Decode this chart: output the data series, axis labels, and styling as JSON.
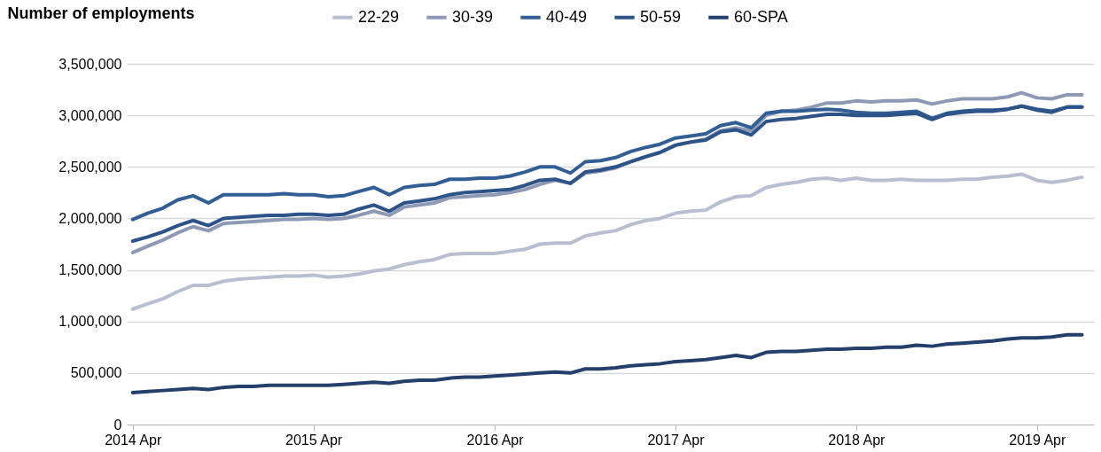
{
  "chart_data": {
    "type": "line",
    "ylabel": "Number of employments",
    "legend": "top",
    "grid": "y",
    "line_style": "solid",
    "marker": "none",
    "x": [
      "2014-04",
      "2014-05",
      "2014-06",
      "2014-07",
      "2014-08",
      "2014-09",
      "2014-10",
      "2014-11",
      "2014-12",
      "2015-01",
      "2015-02",
      "2015-03",
      "2015-04",
      "2015-05",
      "2015-06",
      "2015-07",
      "2015-08",
      "2015-09",
      "2015-10",
      "2015-11",
      "2015-12",
      "2016-01",
      "2016-02",
      "2016-03",
      "2016-04",
      "2016-05",
      "2016-06",
      "2016-07",
      "2016-08",
      "2016-09",
      "2016-10",
      "2016-11",
      "2016-12",
      "2017-01",
      "2017-02",
      "2017-03",
      "2017-04",
      "2017-05",
      "2017-06",
      "2017-07",
      "2017-08",
      "2017-09",
      "2017-10",
      "2017-11",
      "2017-12",
      "2018-01",
      "2018-02",
      "2018-03",
      "2018-04",
      "2018-05",
      "2018-06",
      "2018-07",
      "2018-08",
      "2018-09",
      "2018-10",
      "2018-11",
      "2018-12",
      "2019-01",
      "2019-02",
      "2019-03",
      "2019-04",
      "2019-05",
      "2019-06",
      "2019-07"
    ],
    "xlim": [
      "2014-03-20",
      "2019-07-25"
    ],
    "xticks": [
      {
        "value": "2014-04",
        "label": "2014 Apr"
      },
      {
        "value": "2015-04",
        "label": "2015 Apr"
      },
      {
        "value": "2016-04",
        "label": "2016 Apr"
      },
      {
        "value": "2017-04",
        "label": "2017 Apr"
      },
      {
        "value": "2018-04",
        "label": "2018 Apr"
      },
      {
        "value": "2019-04",
        "label": "2019 Apr"
      }
    ],
    "ylim": [
      0,
      3500000
    ],
    "yticks": [
      0,
      {
        "value": 500000,
        "label": "500,000"
      },
      {
        "value": 1000000,
        "label": "1,000,000"
      },
      {
        "value": 1500000,
        "label": "1,500,000"
      },
      {
        "value": 2000000,
        "label": "2,000,000"
      },
      {
        "value": 2500000,
        "label": "2,500,000"
      },
      {
        "value": 3000000,
        "label": "3,000,000"
      },
      {
        "value": 3500000,
        "label": "3,500,000"
      }
    ],
    "series": [
      {
        "name": "22-29",
        "color": "#b8bfd0",
        "values": [
          1120000,
          1170000,
          1220000,
          1290000,
          1350000,
          1350000,
          1390000,
          1410000,
          1420000,
          1430000,
          1440000,
          1440000,
          1450000,
          1430000,
          1440000,
          1460000,
          1490000,
          1510000,
          1550000,
          1580000,
          1600000,
          1650000,
          1660000,
          1660000,
          1660000,
          1680000,
          1700000,
          1750000,
          1760000,
          1760000,
          1830000,
          1860000,
          1880000,
          1940000,
          1980000,
          2000000,
          2050000,
          2070000,
          2080000,
          2160000,
          2210000,
          2220000,
          2300000,
          2330000,
          2350000,
          2380000,
          2390000,
          2370000,
          2390000,
          2370000,
          2370000,
          2380000,
          2370000,
          2370000,
          2370000,
          2380000,
          2380000,
          2400000,
          2410000,
          2430000,
          2370000,
          2350000,
          2370000,
          2400000
        ]
      },
      {
        "name": "30-39",
        "color": "#8e9ab5",
        "values": [
          1670000,
          1730000,
          1790000,
          1860000,
          1920000,
          1880000,
          1950000,
          1960000,
          1970000,
          1980000,
          1990000,
          1990000,
          2000000,
          1990000,
          2000000,
          2030000,
          2070000,
          2030000,
          2110000,
          2130000,
          2150000,
          2200000,
          2210000,
          2220000,
          2230000,
          2250000,
          2280000,
          2330000,
          2370000,
          2340000,
          2440000,
          2460000,
          2490000,
          2550000,
          2600000,
          2640000,
          2710000,
          2740000,
          2770000,
          2850000,
          2880000,
          2850000,
          3000000,
          3040000,
          3050000,
          3080000,
          3120000,
          3120000,
          3140000,
          3130000,
          3140000,
          3140000,
          3150000,
          3110000,
          3140000,
          3160000,
          3160000,
          3160000,
          3180000,
          3220000,
          3170000,
          3160000,
          3200000,
          3200000
        ]
      },
      {
        "name": "40-49",
        "color": "#335e95",
        "values": [
          1990000,
          2050000,
          2100000,
          2180000,
          2220000,
          2150000,
          2230000,
          2230000,
          2230000,
          2230000,
          2240000,
          2230000,
          2230000,
          2210000,
          2220000,
          2260000,
          2300000,
          2230000,
          2300000,
          2320000,
          2330000,
          2380000,
          2380000,
          2390000,
          2390000,
          2410000,
          2450000,
          2500000,
          2500000,
          2440000,
          2550000,
          2560000,
          2590000,
          2650000,
          2690000,
          2720000,
          2780000,
          2800000,
          2820000,
          2900000,
          2930000,
          2880000,
          3020000,
          3040000,
          3040000,
          3050000,
          3060000,
          3050000,
          3030000,
          3020000,
          3020000,
          3030000,
          3040000,
          2970000,
          3020000,
          3040000,
          3050000,
          3050000,
          3060000,
          3090000,
          3060000,
          3040000,
          3080000,
          3080000
        ]
      },
      {
        "name": "50-59",
        "color": "#2d5389",
        "values": [
          1780000,
          1820000,
          1870000,
          1930000,
          1980000,
          1930000,
          2000000,
          2010000,
          2020000,
          2030000,
          2030000,
          2040000,
          2040000,
          2030000,
          2040000,
          2090000,
          2130000,
          2070000,
          2150000,
          2170000,
          2190000,
          2230000,
          2250000,
          2260000,
          2270000,
          2280000,
          2320000,
          2370000,
          2380000,
          2340000,
          2450000,
          2470000,
          2500000,
          2550000,
          2600000,
          2640000,
          2710000,
          2740000,
          2760000,
          2840000,
          2860000,
          2810000,
          2940000,
          2960000,
          2970000,
          2990000,
          3010000,
          3010000,
          3000000,
          3000000,
          3000000,
          3010000,
          3020000,
          2960000,
          3010000,
          3030000,
          3040000,
          3040000,
          3060000,
          3090000,
          3050000,
          3030000,
          3080000,
          3080000
        ]
      },
      {
        "name": "60-SPA",
        "color": "#233f6a",
        "values": [
          310000,
          320000,
          330000,
          340000,
          350000,
          340000,
          360000,
          370000,
          370000,
          380000,
          380000,
          380000,
          380000,
          380000,
          390000,
          400000,
          410000,
          400000,
          420000,
          430000,
          430000,
          450000,
          460000,
          460000,
          470000,
          480000,
          490000,
          500000,
          510000,
          500000,
          540000,
          540000,
          550000,
          570000,
          580000,
          590000,
          610000,
          620000,
          630000,
          650000,
          670000,
          650000,
          700000,
          710000,
          710000,
          720000,
          730000,
          730000,
          740000,
          740000,
          750000,
          750000,
          770000,
          760000,
          780000,
          790000,
          800000,
          810000,
          830000,
          840000,
          840000,
          850000,
          870000,
          870000
        ]
      }
    ]
  }
}
